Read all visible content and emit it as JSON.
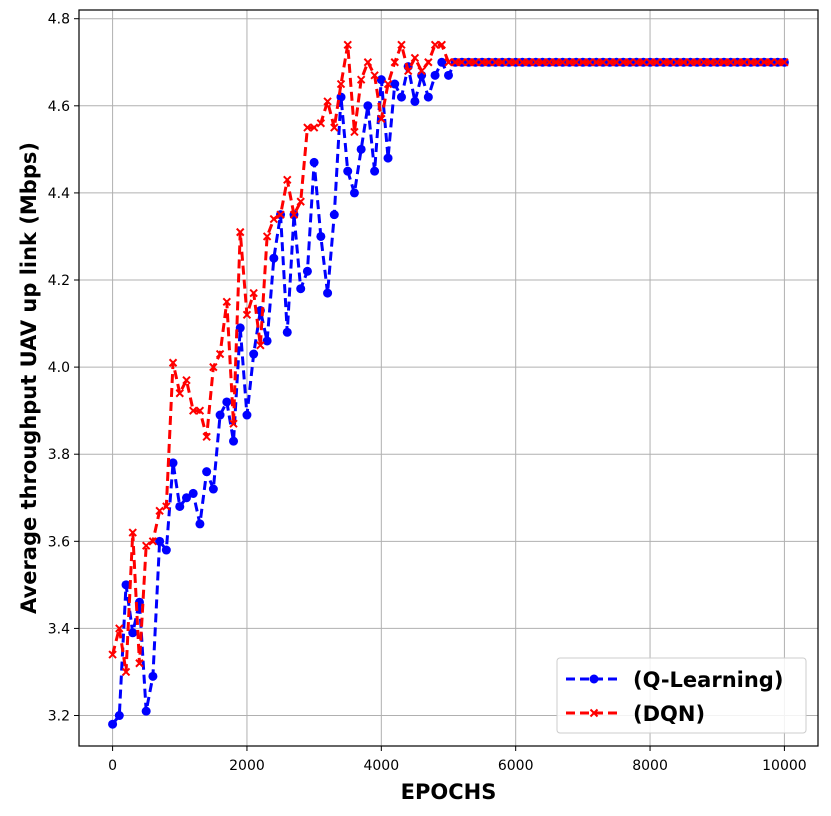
{
  "chart_data": {
    "type": "line",
    "xlabel": "EPOCHS",
    "ylabel": "Average throughput UAV up link (Mbps)",
    "xlim": [
      -500,
      10500
    ],
    "ylim": [
      3.13,
      4.82
    ],
    "xticks": [
      0,
      2000,
      4000,
      6000,
      8000,
      10000
    ],
    "xtick_labels": [
      "0",
      "2000",
      "4000",
      "6000",
      "8000",
      "10000"
    ],
    "yticks": [
      3.2,
      3.4,
      3.6,
      3.8,
      4.0,
      4.2,
      4.4,
      4.6,
      4.8
    ],
    "ytick_labels": [
      "3.2",
      "3.4",
      "3.6",
      "3.8",
      "4.0",
      "4.2",
      "4.4",
      "4.6",
      "4.8"
    ],
    "grid": true,
    "legend_position": "bottom-right",
    "plateau": {
      "x_start": 5100,
      "x_end": 10000,
      "step": 100
    },
    "series": [
      {
        "name": "(Q-Learning)",
        "color": "#0000ff",
        "marker": "circle",
        "linestyle": "dashed",
        "x": [
          0,
          100,
          200,
          300,
          400,
          500,
          600,
          700,
          800,
          900,
          1000,
          1100,
          1200,
          1300,
          1400,
          1500,
          1600,
          1700,
          1800,
          1900,
          2000,
          2100,
          2200,
          2300,
          2400,
          2500,
          2600,
          2700,
          2800,
          2900,
          3000,
          3100,
          3200,
          3300,
          3400,
          3500,
          3600,
          3700,
          3800,
          3900,
          4000,
          4100,
          4200,
          4300,
          4400,
          4500,
          4600,
          4700,
          4800,
          4900,
          5000
        ],
        "values": [
          3.18,
          3.2,
          3.5,
          3.39,
          3.46,
          3.21,
          3.29,
          3.6,
          3.58,
          3.78,
          3.68,
          3.7,
          3.71,
          3.64,
          3.76,
          3.72,
          3.89,
          3.92,
          3.83,
          4.09,
          3.89,
          4.03,
          4.13,
          4.06,
          4.25,
          4.35,
          4.08,
          4.35,
          4.18,
          4.22,
          4.47,
          4.3,
          4.17,
          4.35,
          4.62,
          4.45,
          4.4,
          4.5,
          4.6,
          4.45,
          4.66,
          4.48,
          4.65,
          4.62,
          4.69,
          4.61,
          4.67,
          4.62,
          4.67,
          4.7,
          4.67
        ],
        "plateau_value": 4.7
      },
      {
        "name": "(DQN)",
        "color": "#ff0000",
        "marker": "x",
        "linestyle": "dashed",
        "x": [
          0,
          100,
          200,
          300,
          400,
          500,
          600,
          700,
          800,
          900,
          1000,
          1100,
          1200,
          1300,
          1400,
          1500,
          1600,
          1700,
          1800,
          1900,
          2000,
          2100,
          2200,
          2300,
          2400,
          2500,
          2600,
          2700,
          2800,
          2900,
          3000,
          3100,
          3200,
          3300,
          3400,
          3500,
          3600,
          3700,
          3800,
          3900,
          4000,
          4100,
          4200,
          4300,
          4400,
          4500,
          4600,
          4700,
          4800,
          4900,
          5000
        ],
        "values": [
          3.34,
          3.4,
          3.3,
          3.62,
          3.32,
          3.59,
          3.6,
          3.67,
          3.68,
          4.01,
          3.94,
          3.97,
          3.9,
          3.9,
          3.84,
          4.0,
          4.03,
          4.15,
          3.87,
          4.31,
          4.12,
          4.17,
          4.05,
          4.3,
          4.34,
          4.35,
          4.43,
          4.35,
          4.38,
          4.55,
          4.55,
          4.56,
          4.61,
          4.55,
          4.65,
          4.74,
          4.54,
          4.66,
          4.7,
          4.67,
          4.57,
          4.65,
          4.7,
          4.74,
          4.68,
          4.71,
          4.68,
          4.7,
          4.74,
          4.74,
          4.7
        ],
        "plateau_value": 4.7
      }
    ]
  }
}
